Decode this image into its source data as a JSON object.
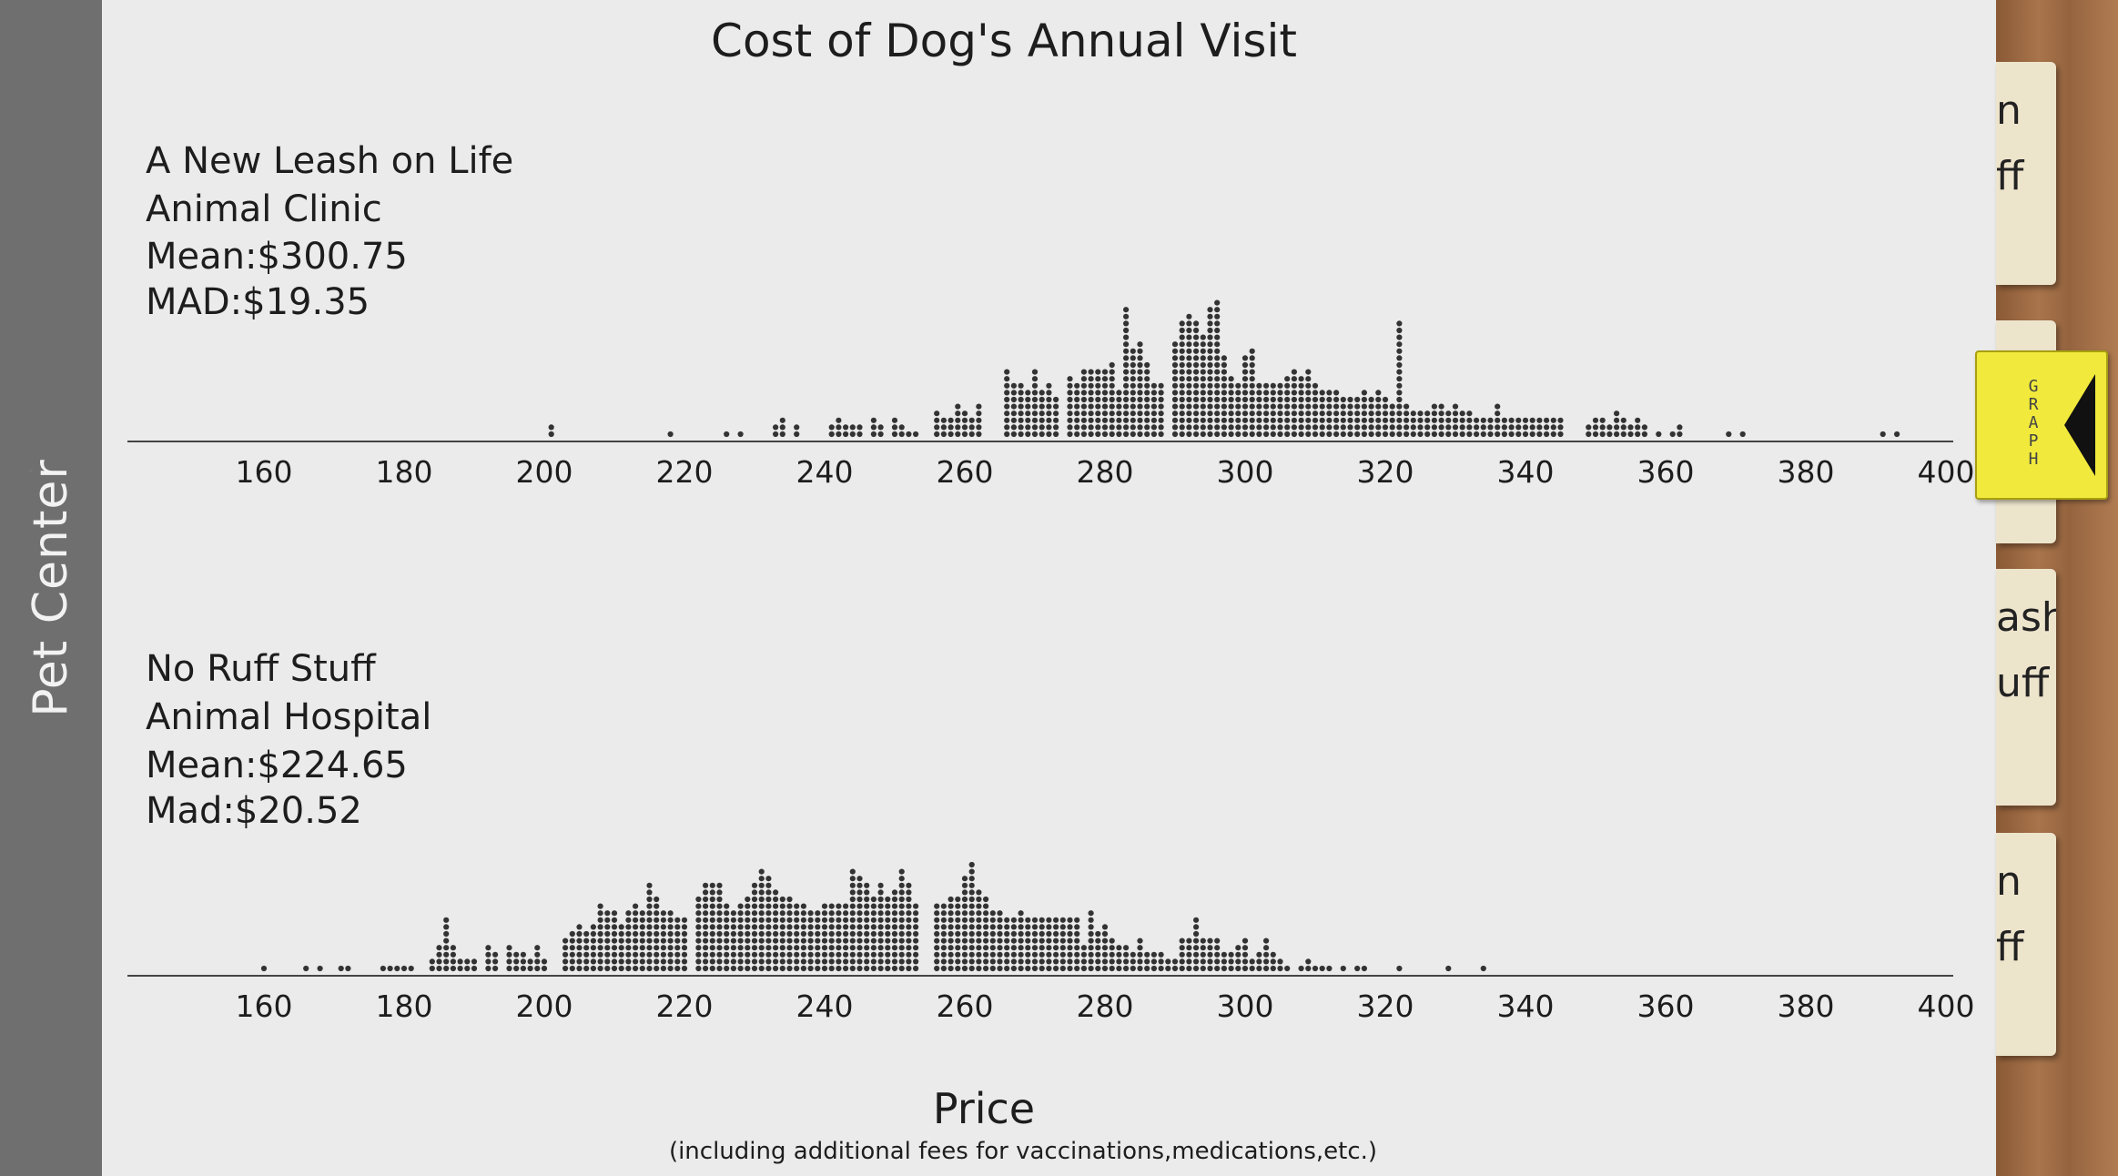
{
  "sidebar": {
    "label": "Pet Center"
  },
  "side_cards": [
    {
      "top": 68,
      "height": 245,
      "lines": [
        "n",
        "ff"
      ]
    },
    {
      "top": 352,
      "height": 245,
      "lines": [
        "",
        ""
      ]
    },
    {
      "top": 625,
      "height": 260,
      "lines": [
        "ash",
        "uff"
      ]
    },
    {
      "top": 915,
      "height": 245,
      "lines": [
        "n",
        "ff"
      ]
    }
  ],
  "graph_tab": {
    "letters": [
      "G",
      "R",
      "A",
      "P",
      "H"
    ]
  },
  "colors": {
    "dot": "#333333",
    "axis": "#444444",
    "paper": "#ebebeb",
    "graph_tab": "#f1ea3c"
  },
  "chart_data": {
    "type": "dot_plot",
    "title": "Cost of Dog's Annual Visit",
    "xlabel": "Price",
    "xlabel_note": "(including additional fees for vaccinations,medications,etc.)",
    "xlim": [
      140,
      400
    ],
    "ticks": [
      160,
      180,
      200,
      220,
      240,
      260,
      280,
      300,
      320,
      340,
      360,
      380,
      400
    ],
    "panels": [
      {
        "name": "A New Leash on Life",
        "info": [
          "A New Leash on Life",
          "Animal Clinic",
          "Mean:$300.75",
          "MAD:$19.35"
        ],
        "counts": {
          "201": 2,
          "218": 1,
          "226": 1,
          "228": 1,
          "233": 2,
          "234": 3,
          "236": 2,
          "241": 2,
          "242": 3,
          "243": 2,
          "244": 2,
          "245": 2,
          "247": 3,
          "248": 2,
          "250": 3,
          "251": 2,
          "252": 1,
          "253": 1,
          "256": 4,
          "257": 3,
          "258": 3,
          "259": 5,
          "260": 4,
          "261": 3,
          "262": 5,
          "266": 10,
          "267": 8,
          "268": 8,
          "269": 7,
          "270": 10,
          "271": 7,
          "272": 8,
          "273": 6,
          "275": 9,
          "276": 8,
          "277": 10,
          "278": 10,
          "279": 10,
          "280": 10,
          "281": 11,
          "282": 7,
          "283": 19,
          "284": 13,
          "285": 14,
          "286": 11,
          "287": 8,
          "288": 8,
          "290": 14,
          "291": 17,
          "292": 18,
          "293": 17,
          "294": 15,
          "295": 19,
          "296": 20,
          "297": 12,
          "298": 9,
          "299": 8,
          "300": 12,
          "301": 13,
          "302": 8,
          "303": 8,
          "304": 8,
          "305": 8,
          "306": 9,
          "307": 10,
          "308": 9,
          "309": 10,
          "310": 8,
          "311": 7,
          "312": 7,
          "313": 7,
          "314": 6,
          "315": 6,
          "316": 6,
          "317": 7,
          "318": 6,
          "319": 7,
          "320": 6,
          "321": 5,
          "322": 17,
          "323": 5,
          "324": 4,
          "325": 4,
          "326": 4,
          "327": 5,
          "328": 5,
          "329": 4,
          "330": 5,
          "331": 4,
          "332": 4,
          "333": 3,
          "334": 3,
          "335": 3,
          "336": 5,
          "337": 3,
          "338": 3,
          "339": 3,
          "340": 3,
          "341": 3,
          "342": 3,
          "343": 3,
          "344": 3,
          "345": 3,
          "349": 2,
          "350": 3,
          "351": 3,
          "352": 2,
          "353": 4,
          "354": 3,
          "355": 2,
          "356": 3,
          "357": 2,
          "359": 1,
          "361": 1,
          "362": 2,
          "369": 1,
          "371": 1,
          "391": 1,
          "393": 1
        }
      },
      {
        "name": "No Ruff Stuff",
        "info": [
          "No Ruff Stuff",
          "Animal Hospital",
          "Mean:$224.65",
          "Mad:$20.52"
        ],
        "counts": {
          "160": 1,
          "166": 1,
          "168": 1,
          "171": 1,
          "172": 1,
          "177": 1,
          "178": 1,
          "179": 1,
          "180": 1,
          "181": 1,
          "184": 2,
          "185": 4,
          "186": 8,
          "187": 4,
          "188": 2,
          "189": 2,
          "190": 2,
          "192": 4,
          "193": 3,
          "195": 4,
          "196": 3,
          "197": 3,
          "198": 2,
          "199": 4,
          "200": 2,
          "203": 5,
          "204": 6,
          "205": 7,
          "206": 6,
          "207": 7,
          "208": 10,
          "209": 9,
          "210": 9,
          "211": 7,
          "212": 9,
          "213": 10,
          "214": 9,
          "215": 13,
          "216": 11,
          "217": 9,
          "218": 9,
          "219": 8,
          "220": 8,
          "222": 11,
          "223": 13,
          "224": 13,
          "225": 13,
          "226": 10,
          "227": 9,
          "228": 10,
          "229": 11,
          "230": 13,
          "231": 15,
          "232": 14,
          "233": 12,
          "234": 11,
          "235": 11,
          "236": 10,
          "237": 10,
          "238": 9,
          "239": 9,
          "240": 10,
          "241": 10,
          "242": 10,
          "243": 10,
          "244": 15,
          "245": 14,
          "246": 13,
          "247": 11,
          "248": 13,
          "249": 11,
          "250": 12,
          "251": 15,
          "252": 13,
          "253": 10,
          "256": 10,
          "257": 10,
          "258": 11,
          "259": 11,
          "260": 14,
          "261": 16,
          "262": 12,
          "263": 11,
          "264": 9,
          "265": 9,
          "266": 8,
          "267": 8,
          "268": 9,
          "269": 8,
          "270": 8,
          "271": 8,
          "272": 8,
          "273": 8,
          "274": 8,
          "275": 8,
          "276": 8,
          "277": 4,
          "278": 9,
          "279": 6,
          "280": 7,
          "281": 5,
          "282": 4,
          "283": 4,
          "284": 3,
          "285": 5,
          "286": 3,
          "287": 3,
          "288": 3,
          "289": 2,
          "290": 2,
          "291": 5,
          "292": 5,
          "293": 8,
          "294": 5,
          "295": 5,
          "296": 5,
          "297": 3,
          "298": 3,
          "299": 4,
          "300": 5,
          "301": 2,
          "302": 3,
          "303": 5,
          "304": 3,
          "305": 2,
          "306": 1,
          "308": 1,
          "309": 2,
          "310": 1,
          "311": 1,
          "312": 1,
          "314": 1,
          "316": 1,
          "317": 1,
          "322": 1,
          "329": 1,
          "334": 1
        }
      }
    ]
  }
}
